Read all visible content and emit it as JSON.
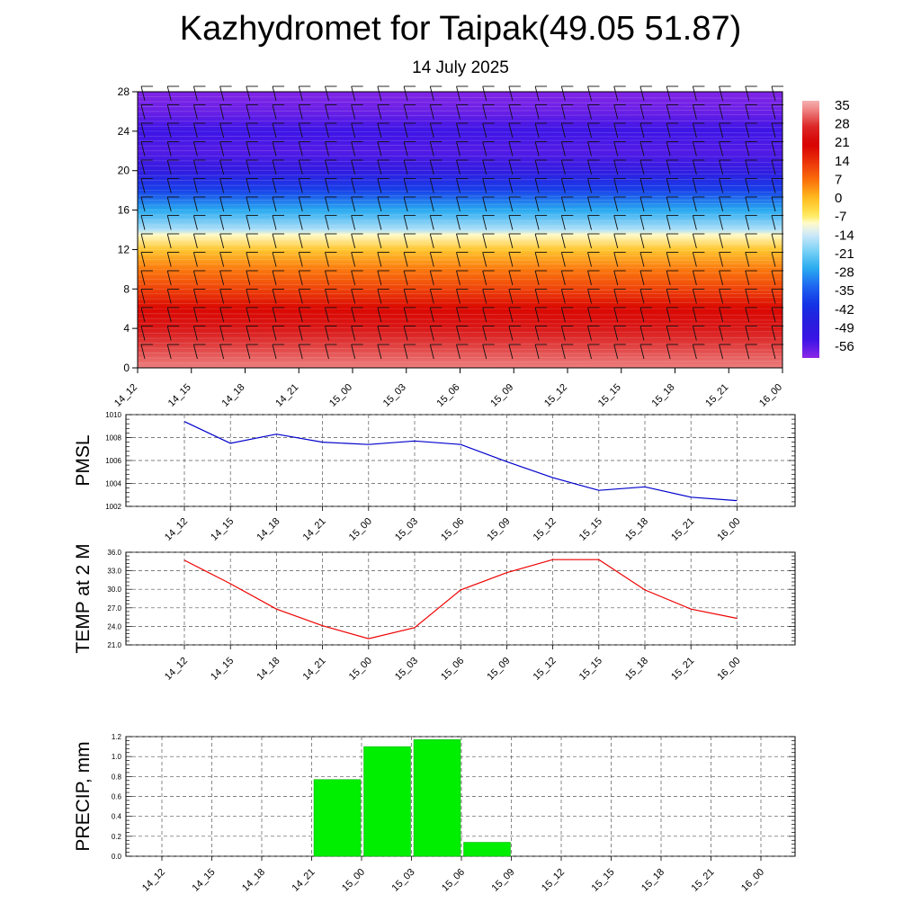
{
  "title": "Kazhydromet for Taipak(49.05 51.87)",
  "subtitle": "14 July 2025",
  "time_labels": [
    "14_12",
    "14_15",
    "14_18",
    "14_21",
    "15_00",
    "15_03",
    "15_06",
    "15_09",
    "15_12",
    "15_15",
    "15_18",
    "15_21",
    "16_00"
  ],
  "colors": {
    "pmsl_line": "#0000cc",
    "temp_line": "#ee0000",
    "precip_bar": "#00ee00",
    "grid": "#555555"
  },
  "chart_data": [
    {
      "type": "heatmap",
      "title": "",
      "xlabel": "",
      "ylabel": "",
      "x": [
        "14_12",
        "14_15",
        "14_18",
        "14_21",
        "15_00",
        "15_03",
        "15_06",
        "15_09",
        "15_12",
        "15_15",
        "15_18",
        "15_21",
        "16_00"
      ],
      "yticks": [
        0,
        4,
        8,
        12,
        16,
        20,
        24,
        28
      ],
      "ylim": [
        0,
        28
      ],
      "colorbar_labels": [
        "35",
        "28",
        "21",
        "14",
        "7",
        "0",
        "-7",
        "-14",
        "-21",
        "-28",
        "-35",
        "-42",
        "-49",
        "-56"
      ],
      "colorbar_range": [
        -63,
        38
      ],
      "temperature_profile": [
        {
          "y": 0,
          "value": 34
        },
        {
          "y": 2,
          "value": 30
        },
        {
          "y": 4,
          "value": 25
        },
        {
          "y": 6,
          "value": 20
        },
        {
          "y": 8,
          "value": 12
        },
        {
          "y": 10,
          "value": 6
        },
        {
          "y": 12,
          "value": -2
        },
        {
          "y": 13.5,
          "value": -10
        },
        {
          "y": 14,
          "value": -17
        },
        {
          "y": 16,
          "value": -28
        },
        {
          "y": 18,
          "value": -40
        },
        {
          "y": 20,
          "value": -52
        },
        {
          "y": 22,
          "value": -58
        },
        {
          "y": 24,
          "value": -56
        },
        {
          "y": 26,
          "value": -60
        },
        {
          "y": 28,
          "value": -62
        }
      ],
      "grid": false
    },
    {
      "type": "line",
      "ylabel": "PMSL",
      "x": [
        "14_12",
        "14_15",
        "14_18",
        "14_21",
        "15_00",
        "15_03",
        "15_06",
        "15_09",
        "15_12",
        "15_15",
        "15_18",
        "15_21",
        "16_00"
      ],
      "series": [
        {
          "values": [
            1009.4,
            1007.5,
            1008.3,
            1007.6,
            1007.4,
            1007.7,
            1007.4,
            1005.9,
            1004.5,
            1003.4,
            1003.7,
            1002.8,
            1002.5
          ]
        }
      ],
      "ylim": [
        1002,
        1010
      ],
      "yticks": [
        "1002",
        "1004",
        "1006",
        "1008",
        "1010"
      ],
      "grid": true
    },
    {
      "type": "line",
      "ylabel": "TEMP at 2 M",
      "x": [
        "14_12",
        "14_15",
        "14_18",
        "14_21",
        "15_00",
        "15_03",
        "15_06",
        "15_09",
        "15_12",
        "15_15",
        "15_18",
        "15_21",
        "16_00"
      ],
      "series": [
        {
          "values": [
            34.7,
            30.9,
            26.8,
            24.1,
            22.0,
            23.8,
            29.9,
            32.7,
            34.8,
            34.8,
            29.9,
            26.8,
            25.3
          ]
        }
      ],
      "ylim": [
        21.0,
        36.0
      ],
      "yticks": [
        "21.0",
        "24.0",
        "27.0",
        "30.0",
        "33.0",
        "36.0"
      ],
      "grid": true
    },
    {
      "type": "bar",
      "ylabel": "PRECIP, mm",
      "categories": [
        "14_12",
        "14_15",
        "14_18",
        "14_21",
        "15_00",
        "15_03",
        "15_06",
        "15_09",
        "15_12",
        "15_15",
        "15_18",
        "15_21",
        "16_00"
      ],
      "values": [
        0,
        0,
        0.77,
        1.1,
        1.17,
        0.14,
        0,
        0,
        0,
        0,
        0,
        0,
        0
      ],
      "ylim": [
        0.0,
        1.2
      ],
      "yticks": [
        "0.0",
        "0.2",
        "0.4",
        "0.6",
        "0.8",
        "1.0",
        "1.2"
      ],
      "grid": true
    }
  ]
}
